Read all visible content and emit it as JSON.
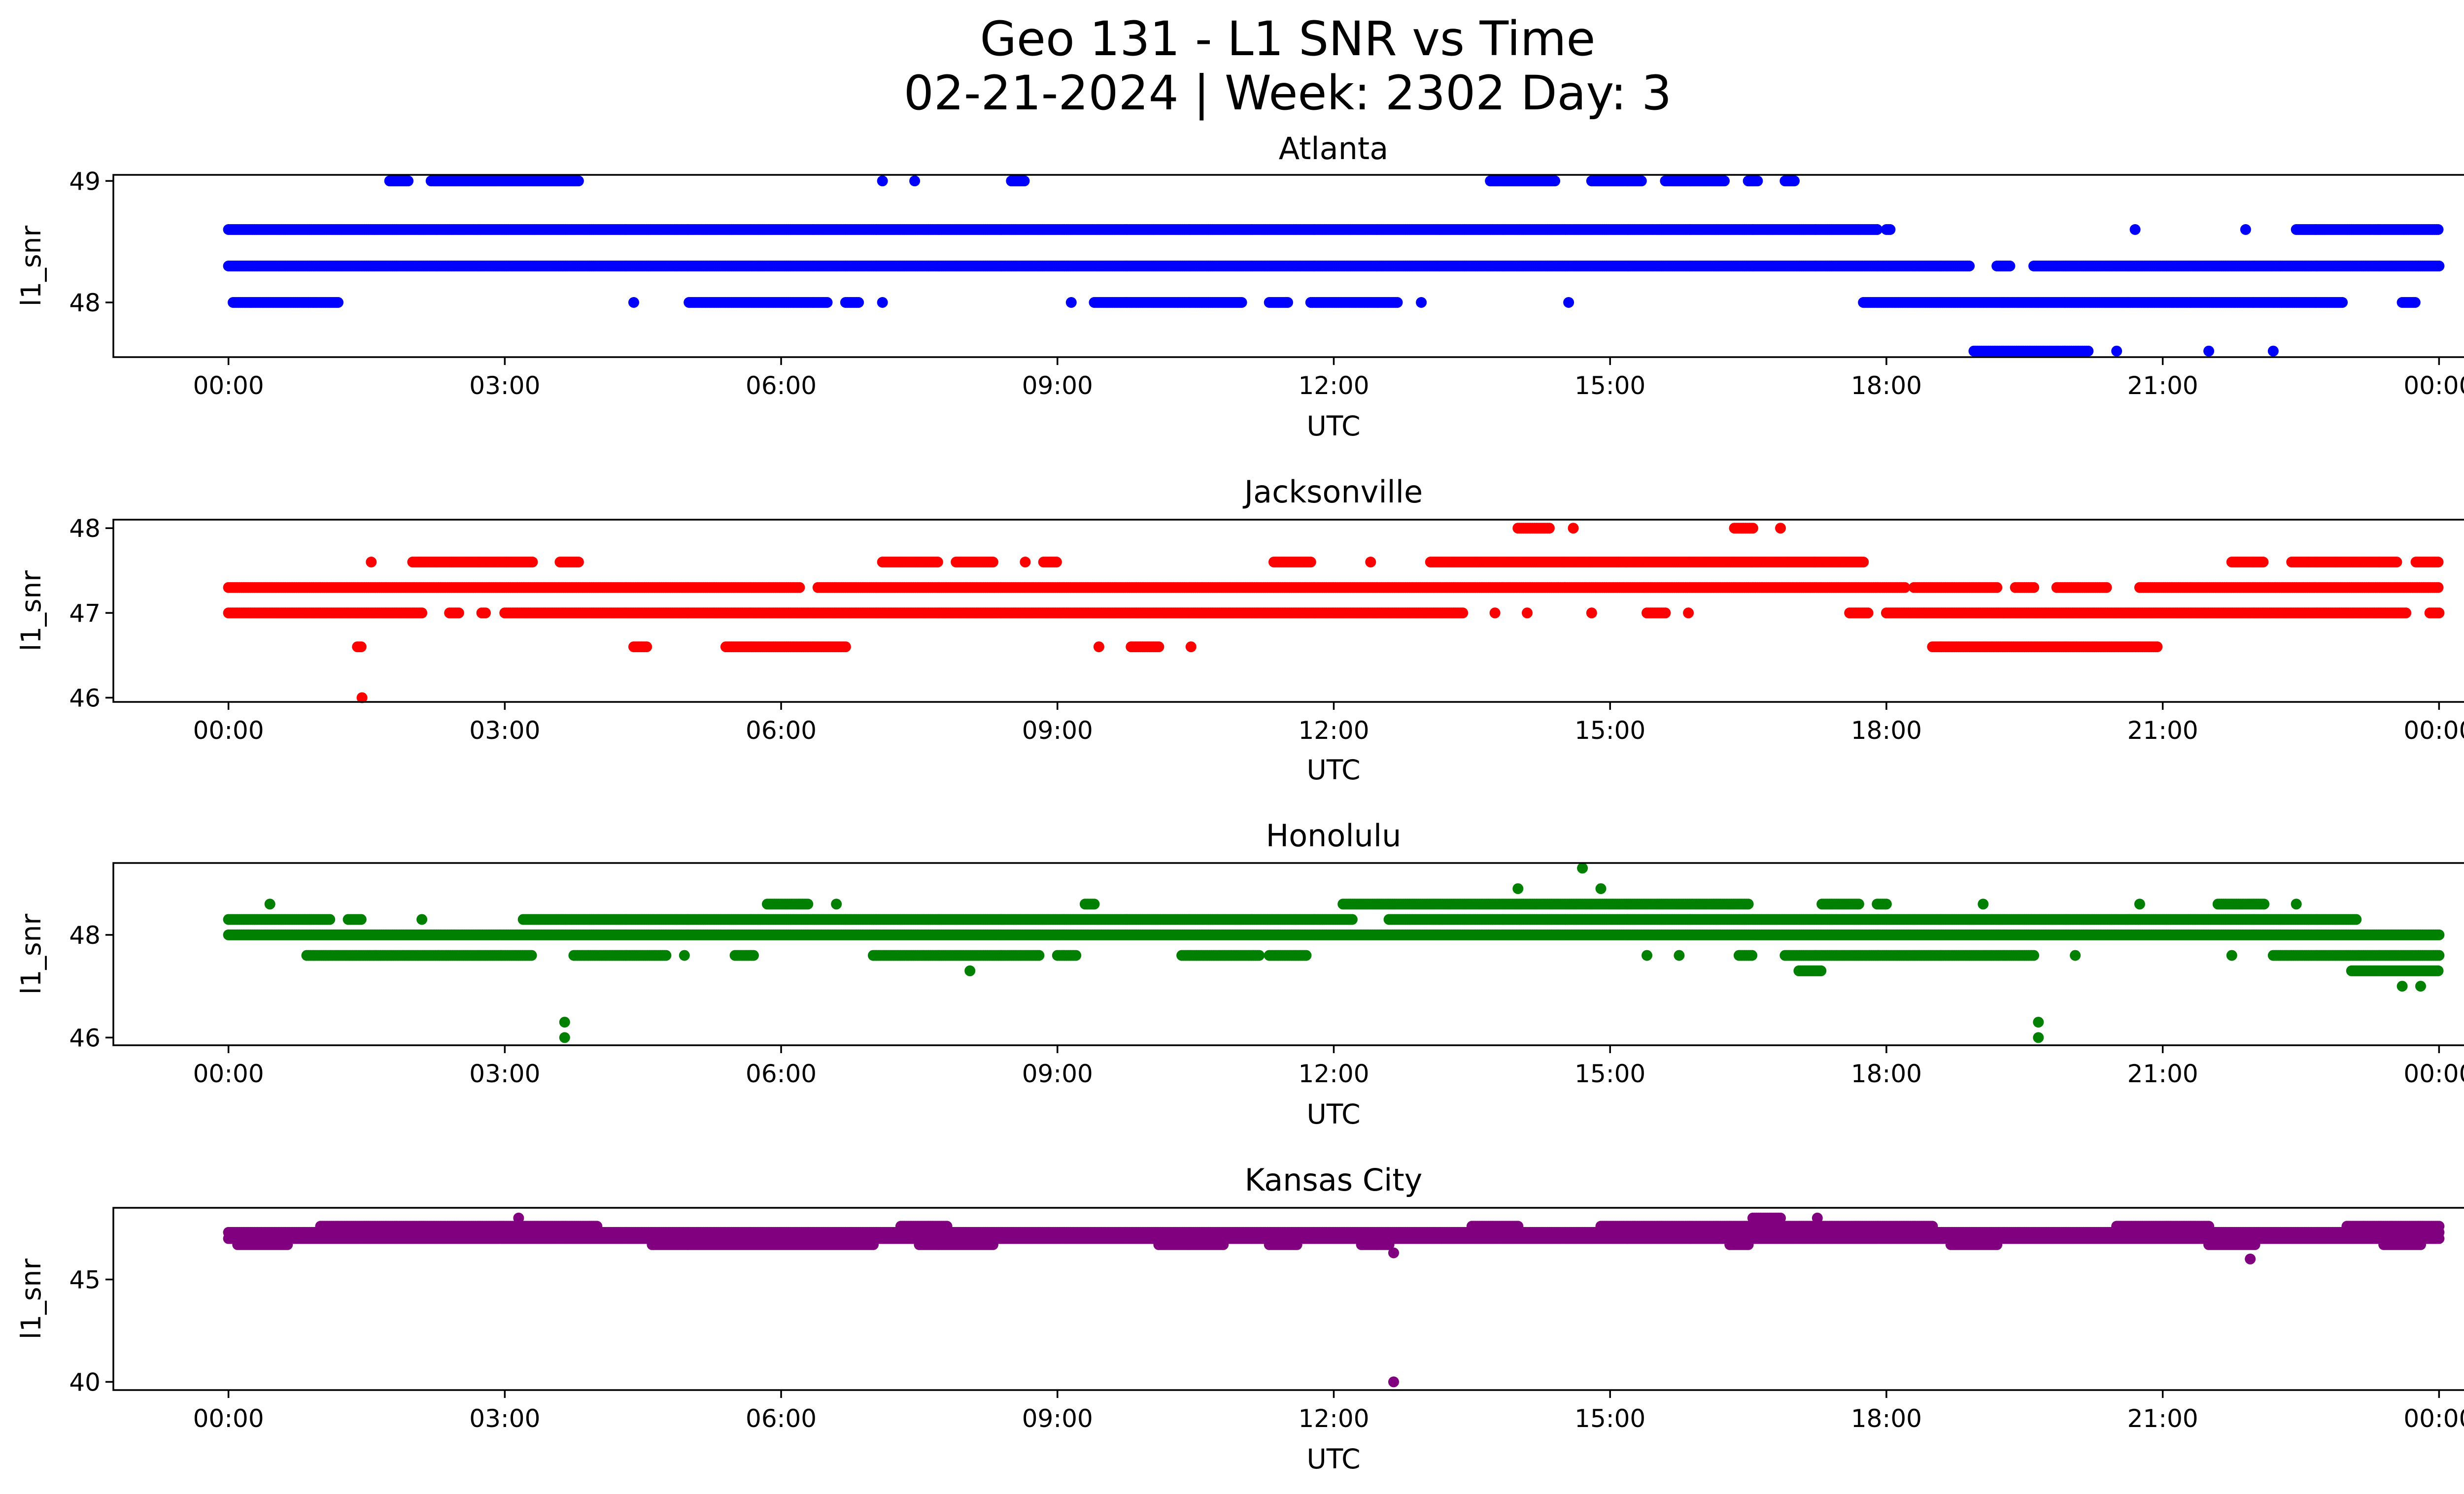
{
  "figure": {
    "title_line1": "Geo 131 - L1 SNR vs Time",
    "title_line2": "02-21-2024 | Week: 2302 Day: 3"
  },
  "chart_data": [
    {
      "type": "scatter",
      "title": "Atlanta",
      "xlabel": "UTC",
      "ylabel": "l1_snr",
      "color": "#0000ff",
      "xticks": [
        "00:00",
        "03:00",
        "06:00",
        "09:00",
        "12:00",
        "15:00",
        "18:00",
        "21:00",
        "00:00"
      ],
      "xlim_hours": [
        -1.25,
        25.25
      ],
      "ylim": [
        47.55,
        49.05
      ],
      "yticks": [
        48,
        49
      ],
      "bands": [
        {
          "y": 48.6,
          "segments": [
            [
              0.0,
              17.9
            ],
            [
              18.0,
              18.05
            ],
            [
              20.7,
              20.7
            ],
            [
              21.9,
              21.9
            ],
            [
              22.45,
              24.0
            ]
          ]
        },
        {
          "y": 48.3,
          "segments": [
            [
              0.0,
              18.9
            ],
            [
              19.2,
              19.35
            ],
            [
              19.6,
              24.0
            ]
          ]
        },
        {
          "y": 48.0,
          "segments": [
            [
              0.05,
              1.2
            ],
            [
              4.4,
              4.4
            ],
            [
              5.0,
              6.5
            ],
            [
              6.7,
              6.85
            ],
            [
              7.1,
              7.1
            ],
            [
              9.15,
              9.15
            ],
            [
              9.4,
              11.0
            ],
            [
              11.3,
              11.5
            ],
            [
              11.75,
              12.7
            ],
            [
              12.95,
              12.95
            ],
            [
              14.55,
              14.55
            ],
            [
              17.75,
              22.95
            ],
            [
              23.6,
              23.75
            ]
          ]
        },
        {
          "y": 49.0,
          "segments": [
            [
              1.75,
              1.95
            ],
            [
              2.2,
              3.8
            ],
            [
              7.1,
              7.1
            ],
            [
              7.45,
              7.45
            ],
            [
              8.5,
              8.65
            ],
            [
              13.7,
              14.4
            ],
            [
              14.8,
              15.35
            ],
            [
              15.6,
              16.25
            ],
            [
              16.5,
              16.6
            ],
            [
              16.9,
              17.0
            ]
          ]
        },
        {
          "y": 47.6,
          "segments": [
            [
              18.95,
              20.2
            ],
            [
              20.5,
              20.5
            ],
            [
              21.5,
              21.5
            ],
            [
              22.2,
              22.2
            ]
          ]
        }
      ]
    },
    {
      "type": "scatter",
      "title": "Jacksonville",
      "xlabel": "UTC",
      "ylabel": "l1_snr",
      "color": "#ff0000",
      "xticks": [
        "00:00",
        "03:00",
        "06:00",
        "09:00",
        "12:00",
        "15:00",
        "18:00",
        "21:00",
        "00:00"
      ],
      "xlim_hours": [
        -1.25,
        25.25
      ],
      "ylim": [
        45.95,
        48.1
      ],
      "yticks": [
        46,
        47,
        48
      ],
      "bands": [
        {
          "y": 47.3,
          "segments": [
            [
              0.0,
              6.2
            ],
            [
              6.4,
              18.2
            ],
            [
              18.3,
              19.2
            ],
            [
              19.4,
              19.6
            ],
            [
              19.85,
              20.4
            ],
            [
              20.75,
              24.0
            ]
          ]
        },
        {
          "y": 47.0,
          "segments": [
            [
              0.0,
              2.1
            ],
            [
              2.4,
              2.5
            ],
            [
              2.75,
              2.8
            ],
            [
              3.0,
              13.4
            ],
            [
              13.75,
              13.75
            ],
            [
              14.1,
              14.1
            ],
            [
              14.8,
              14.8
            ],
            [
              15.4,
              15.6
            ],
            [
              15.85,
              15.85
            ],
            [
              17.6,
              17.8
            ],
            [
              18.0,
              23.65
            ],
            [
              23.9,
              24.0
            ]
          ]
        },
        {
          "y": 47.6,
          "segments": [
            [
              1.55,
              1.55
            ],
            [
              2.0,
              3.3
            ],
            [
              3.6,
              3.8
            ],
            [
              7.1,
              7.7
            ],
            [
              7.9,
              8.3
            ],
            [
              8.65,
              8.65
            ],
            [
              8.85,
              9.0
            ],
            [
              11.35,
              11.75
            ],
            [
              12.4,
              12.4
            ],
            [
              13.05,
              17.75
            ],
            [
              21.75,
              22.1
            ],
            [
              22.4,
              23.55
            ],
            [
              23.75,
              24.0
            ]
          ]
        },
        {
          "y": 46.6,
          "segments": [
            [
              1.4,
              1.45
            ],
            [
              4.4,
              4.55
            ],
            [
              5.4,
              6.7
            ],
            [
              9.45,
              9.45
            ],
            [
              9.8,
              10.1
            ],
            [
              10.45,
              10.45
            ],
            [
              18.5,
              20.95
            ]
          ]
        },
        {
          "y": 48.0,
          "segments": [
            [
              14.0,
              14.35
            ],
            [
              14.6,
              14.6
            ],
            [
              16.35,
              16.55
            ],
            [
              16.85,
              16.85
            ]
          ]
        },
        {
          "y": 46.0,
          "segments": [
            [
              1.45,
              1.45
            ]
          ]
        }
      ]
    },
    {
      "type": "scatter",
      "title": "Honolulu",
      "xlabel": "UTC",
      "ylabel": "l1_snr",
      "color": "#008000",
      "xticks": [
        "00:00",
        "03:00",
        "06:00",
        "09:00",
        "12:00",
        "15:00",
        "18:00",
        "21:00",
        "00:00"
      ],
      "xlim_hours": [
        -1.25,
        25.25
      ],
      "ylim": [
        45.85,
        49.4
      ],
      "yticks": [
        46,
        48
      ],
      "bands": [
        {
          "y": 48.0,
          "segments": [
            [
              0.0,
              24.0
            ]
          ]
        },
        {
          "y": 48.3,
          "segments": [
            [
              0.0,
              1.1
            ],
            [
              1.3,
              1.45
            ],
            [
              2.1,
              2.1
            ],
            [
              3.2,
              12.2
            ],
            [
              12.6,
              23.1
            ]
          ]
        },
        {
          "y": 48.6,
          "segments": [
            [
              0.45,
              0.45
            ],
            [
              5.85,
              6.3
            ],
            [
              6.6,
              6.6
            ],
            [
              9.3,
              9.4
            ],
            [
              12.1,
              16.5
            ],
            [
              17.3,
              17.7
            ],
            [
              17.9,
              18.0
            ],
            [
              19.05,
              19.05
            ],
            [
              20.75,
              20.75
            ],
            [
              21.6,
              22.1
            ],
            [
              22.45,
              22.45
            ]
          ]
        },
        {
          "y": 47.6,
          "segments": [
            [
              0.85,
              3.3
            ],
            [
              3.75,
              4.75
            ],
            [
              4.95,
              4.95
            ],
            [
              5.5,
              5.7
            ],
            [
              7.0,
              8.8
            ],
            [
              9.0,
              9.2
            ],
            [
              10.35,
              11.2
            ],
            [
              11.3,
              11.7
            ],
            [
              15.4,
              15.4
            ],
            [
              15.75,
              15.75
            ],
            [
              16.4,
              16.55
            ],
            [
              16.9,
              19.6
            ],
            [
              20.05,
              20.05
            ],
            [
              21.75,
              21.75
            ],
            [
              22.2,
              24.0
            ]
          ]
        },
        {
          "y": 47.3,
          "segments": [
            [
              8.05,
              8.05
            ],
            [
              17.05,
              17.3
            ],
            [
              23.05,
              24.0
            ]
          ]
        },
        {
          "y": 48.9,
          "segments": [
            [
              14.0,
              14.0
            ],
            [
              14.9,
              14.9
            ]
          ]
        },
        {
          "y": 49.3,
          "segments": [
            [
              14.7,
              14.7
            ]
          ]
        },
        {
          "y": 47.0,
          "segments": [
            [
              23.6,
              23.6
            ],
            [
              23.8,
              23.8
            ]
          ]
        },
        {
          "y": 46.3,
          "segments": [
            [
              3.65,
              3.65
            ],
            [
              19.65,
              19.65
            ]
          ]
        },
        {
          "y": 46.0,
          "segments": [
            [
              3.65,
              3.65
            ],
            [
              19.65,
              19.65
            ]
          ]
        }
      ]
    },
    {
      "type": "scatter",
      "title": "Kansas City",
      "xlabel": "UTC",
      "ylabel": "l1_snr",
      "color": "#800080",
      "xticks": [
        "00:00",
        "03:00",
        "06:00",
        "09:00",
        "12:00",
        "15:00",
        "18:00",
        "21:00",
        "00:00"
      ],
      "xlim_hours": [
        -1.25,
        25.25
      ],
      "ylim": [
        39.6,
        48.5
      ],
      "yticks": [
        40,
        45
      ],
      "bands": [
        {
          "y": 47.0,
          "segments": [
            [
              0.0,
              24.0
            ]
          ]
        },
        {
          "y": 47.3,
          "segments": [
            [
              0.0,
              24.0
            ]
          ]
        },
        {
          "y": 46.7,
          "segments": [
            [
              0.1,
              0.65
            ],
            [
              4.6,
              7.0
            ],
            [
              7.5,
              8.3
            ],
            [
              10.1,
              10.8
            ],
            [
              11.3,
              11.6
            ],
            [
              12.3,
              12.6
            ],
            [
              16.3,
              16.5
            ],
            [
              18.7,
              19.2
            ],
            [
              21.5,
              22.0
            ],
            [
              23.4,
              23.8
            ]
          ]
        },
        {
          "y": 47.6,
          "segments": [
            [
              1.0,
              4.0
            ],
            [
              7.3,
              7.8
            ],
            [
              13.5,
              14.0
            ],
            [
              14.9,
              16.3
            ],
            [
              16.3,
              18.5
            ],
            [
              20.5,
              21.5
            ],
            [
              23.0,
              24.0
            ]
          ]
        },
        {
          "y": 48.0,
          "segments": [
            [
              3.15,
              3.15
            ],
            [
              16.55,
              16.85
            ],
            [
              17.25,
              17.25
            ]
          ]
        },
        {
          "y": 46.3,
          "segments": [
            [
              12.65,
              12.65
            ]
          ]
        },
        {
          "y": 46.0,
          "segments": [
            [
              21.95,
              21.95
            ]
          ]
        },
        {
          "y": 40.0,
          "segments": [
            [
              12.65,
              12.65
            ]
          ]
        }
      ]
    }
  ]
}
